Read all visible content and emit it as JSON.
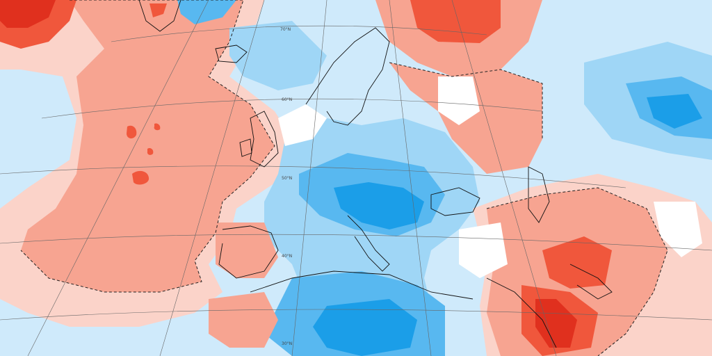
{
  "map": {
    "type": "anomaly-map",
    "projection": "polar-stereographic",
    "region": "Europe / North Atlantic",
    "latitude_labels": [
      "70°N",
      "60°N",
      "50°N",
      "40°N",
      "30°N"
    ],
    "palette": {
      "strong_negative": "#1b9ee8",
      "negative": "#58b8f0",
      "weak_negative": "#9fd6f6",
      "slight_negative": "#cfeafb",
      "neutral": "#ffffff",
      "slight_positive": "#fbd3c9",
      "positive": "#f7a491",
      "strong_positive": "#f0573c",
      "extreme_positive": "#e0301e"
    },
    "coastline_color": "#111111",
    "contour_style": "dashed",
    "graticule_color": "#555555"
  }
}
